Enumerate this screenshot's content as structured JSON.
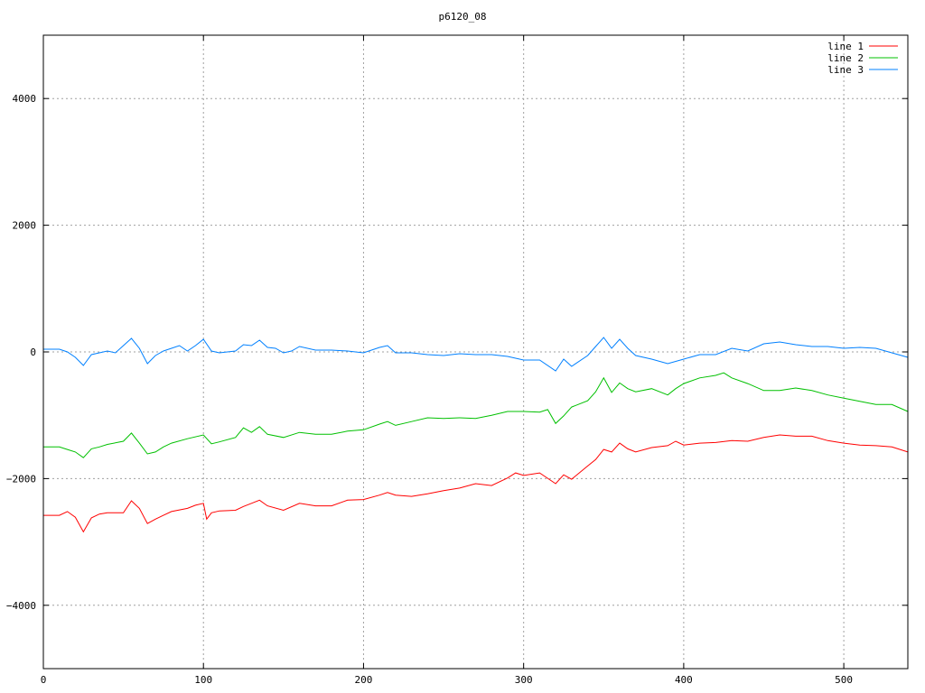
{
  "chart_data": {
    "type": "line",
    "title": "p6120_08",
    "xlabel": "",
    "ylabel": "",
    "xlim": [
      0,
      540
    ],
    "ylim": [
      -5000,
      5000
    ],
    "xticks": [
      0,
      100,
      200,
      300,
      400,
      500
    ],
    "yticks": [
      -4000,
      -2000,
      0,
      2000,
      4000
    ],
    "grid": true,
    "legend_position": "top-right",
    "series": [
      {
        "name": "line 1",
        "color": "#ff0000",
        "points": [
          [
            0,
            -2580
          ],
          [
            10,
            -2580
          ],
          [
            15,
            -2520
          ],
          [
            20,
            -2610
          ],
          [
            25,
            -2840
          ],
          [
            30,
            -2620
          ],
          [
            35,
            -2560
          ],
          [
            40,
            -2540
          ],
          [
            50,
            -2540
          ],
          [
            55,
            -2350
          ],
          [
            60,
            -2470
          ],
          [
            65,
            -2710
          ],
          [
            70,
            -2640
          ],
          [
            75,
            -2580
          ],
          [
            80,
            -2520
          ],
          [
            90,
            -2470
          ],
          [
            95,
            -2420
          ],
          [
            100,
            -2390
          ],
          [
            102,
            -2640
          ],
          [
            105,
            -2540
          ],
          [
            110,
            -2510
          ],
          [
            120,
            -2500
          ],
          [
            125,
            -2440
          ],
          [
            130,
            -2390
          ],
          [
            135,
            -2340
          ],
          [
            140,
            -2430
          ],
          [
            150,
            -2500
          ],
          [
            160,
            -2390
          ],
          [
            170,
            -2430
          ],
          [
            180,
            -2430
          ],
          [
            190,
            -2340
          ],
          [
            200,
            -2330
          ],
          [
            210,
            -2260
          ],
          [
            215,
            -2220
          ],
          [
            220,
            -2260
          ],
          [
            230,
            -2280
          ],
          [
            240,
            -2240
          ],
          [
            250,
            -2190
          ],
          [
            260,
            -2150
          ],
          [
            270,
            -2080
          ],
          [
            280,
            -2110
          ],
          [
            290,
            -1990
          ],
          [
            295,
            -1910
          ],
          [
            300,
            -1950
          ],
          [
            310,
            -1910
          ],
          [
            320,
            -2080
          ],
          [
            325,
            -1940
          ],
          [
            330,
            -2010
          ],
          [
            340,
            -1800
          ],
          [
            345,
            -1700
          ],
          [
            350,
            -1540
          ],
          [
            355,
            -1580
          ],
          [
            360,
            -1440
          ],
          [
            365,
            -1530
          ],
          [
            370,
            -1580
          ],
          [
            380,
            -1510
          ],
          [
            390,
            -1480
          ],
          [
            395,
            -1410
          ],
          [
            400,
            -1470
          ],
          [
            410,
            -1440
          ],
          [
            420,
            -1430
          ],
          [
            430,
            -1400
          ],
          [
            440,
            -1410
          ],
          [
            450,
            -1350
          ],
          [
            460,
            -1310
          ],
          [
            470,
            -1330
          ],
          [
            480,
            -1330
          ],
          [
            490,
            -1400
          ],
          [
            500,
            -1440
          ],
          [
            510,
            -1470
          ],
          [
            520,
            -1480
          ],
          [
            530,
            -1500
          ],
          [
            540,
            -1580
          ]
        ]
      },
      {
        "name": "line 2",
        "color": "#00c000",
        "points": [
          [
            0,
            -1500
          ],
          [
            10,
            -1500
          ],
          [
            15,
            -1540
          ],
          [
            20,
            -1580
          ],
          [
            25,
            -1670
          ],
          [
            30,
            -1530
          ],
          [
            35,
            -1500
          ],
          [
            40,
            -1460
          ],
          [
            50,
            -1410
          ],
          [
            55,
            -1280
          ],
          [
            60,
            -1440
          ],
          [
            65,
            -1610
          ],
          [
            70,
            -1580
          ],
          [
            75,
            -1500
          ],
          [
            80,
            -1440
          ],
          [
            90,
            -1370
          ],
          [
            100,
            -1310
          ],
          [
            105,
            -1450
          ],
          [
            110,
            -1420
          ],
          [
            120,
            -1350
          ],
          [
            125,
            -1200
          ],
          [
            130,
            -1270
          ],
          [
            135,
            -1180
          ],
          [
            140,
            -1300
          ],
          [
            150,
            -1350
          ],
          [
            160,
            -1270
          ],
          [
            170,
            -1300
          ],
          [
            180,
            -1300
          ],
          [
            190,
            -1250
          ],
          [
            200,
            -1230
          ],
          [
            210,
            -1140
          ],
          [
            215,
            -1100
          ],
          [
            220,
            -1160
          ],
          [
            230,
            -1100
          ],
          [
            240,
            -1040
          ],
          [
            250,
            -1050
          ],
          [
            260,
            -1040
          ],
          [
            270,
            -1050
          ],
          [
            280,
            -1000
          ],
          [
            290,
            -940
          ],
          [
            300,
            -940
          ],
          [
            310,
            -950
          ],
          [
            315,
            -910
          ],
          [
            320,
            -1130
          ],
          [
            325,
            -1010
          ],
          [
            330,
            -870
          ],
          [
            340,
            -770
          ],
          [
            345,
            -630
          ],
          [
            350,
            -410
          ],
          [
            355,
            -640
          ],
          [
            360,
            -490
          ],
          [
            365,
            -580
          ],
          [
            370,
            -630
          ],
          [
            380,
            -580
          ],
          [
            390,
            -680
          ],
          [
            395,
            -580
          ],
          [
            400,
            -500
          ],
          [
            410,
            -410
          ],
          [
            420,
            -370
          ],
          [
            425,
            -330
          ],
          [
            430,
            -410
          ],
          [
            440,
            -500
          ],
          [
            450,
            -610
          ],
          [
            460,
            -610
          ],
          [
            470,
            -570
          ],
          [
            480,
            -610
          ],
          [
            490,
            -680
          ],
          [
            500,
            -730
          ],
          [
            510,
            -780
          ],
          [
            520,
            -830
          ],
          [
            530,
            -830
          ],
          [
            540,
            -940
          ]
        ]
      },
      {
        "name": "line 3",
        "color": "#0080ff",
        "points": [
          [
            0,
            43
          ],
          [
            10,
            43
          ],
          [
            15,
            0
          ],
          [
            20,
            -86
          ],
          [
            25,
            -214
          ],
          [
            30,
            -43
          ],
          [
            35,
            -14
          ],
          [
            40,
            14
          ],
          [
            45,
            -14
          ],
          [
            50,
            100
          ],
          [
            55,
            214
          ],
          [
            60,
            57
          ],
          [
            65,
            -185
          ],
          [
            70,
            -57
          ],
          [
            75,
            14
          ],
          [
            80,
            57
          ],
          [
            85,
            100
          ],
          [
            90,
            14
          ],
          [
            95,
            100
          ],
          [
            100,
            200
          ],
          [
            105,
            14
          ],
          [
            110,
            -14
          ],
          [
            120,
            14
          ],
          [
            125,
            114
          ],
          [
            130,
            100
          ],
          [
            135,
            185
          ],
          [
            140,
            71
          ],
          [
            145,
            57
          ],
          [
            150,
            -14
          ],
          [
            155,
            14
          ],
          [
            160,
            85
          ],
          [
            170,
            28
          ],
          [
            180,
            28
          ],
          [
            190,
            14
          ],
          [
            200,
            -14
          ],
          [
            210,
            71
          ],
          [
            215,
            100
          ],
          [
            220,
            -14
          ],
          [
            230,
            -14
          ],
          [
            240,
            -43
          ],
          [
            250,
            -57
          ],
          [
            260,
            -28
          ],
          [
            270,
            -43
          ],
          [
            280,
            -43
          ],
          [
            290,
            -71
          ],
          [
            300,
            -128
          ],
          [
            310,
            -128
          ],
          [
            320,
            -300
          ],
          [
            325,
            -114
          ],
          [
            330,
            -228
          ],
          [
            340,
            -57
          ],
          [
            345,
            85
          ],
          [
            350,
            228
          ],
          [
            355,
            57
          ],
          [
            360,
            200
          ],
          [
            365,
            57
          ],
          [
            370,
            -57
          ],
          [
            380,
            -114
          ],
          [
            390,
            -185
          ],
          [
            400,
            -114
          ],
          [
            410,
            -43
          ],
          [
            420,
            -43
          ],
          [
            430,
            57
          ],
          [
            440,
            14
          ],
          [
            450,
            128
          ],
          [
            460,
            157
          ],
          [
            470,
            114
          ],
          [
            480,
            85
          ],
          [
            490,
            85
          ],
          [
            500,
            57
          ],
          [
            510,
            71
          ],
          [
            520,
            57
          ],
          [
            530,
            -14
          ],
          [
            540,
            -85
          ]
        ]
      }
    ]
  }
}
